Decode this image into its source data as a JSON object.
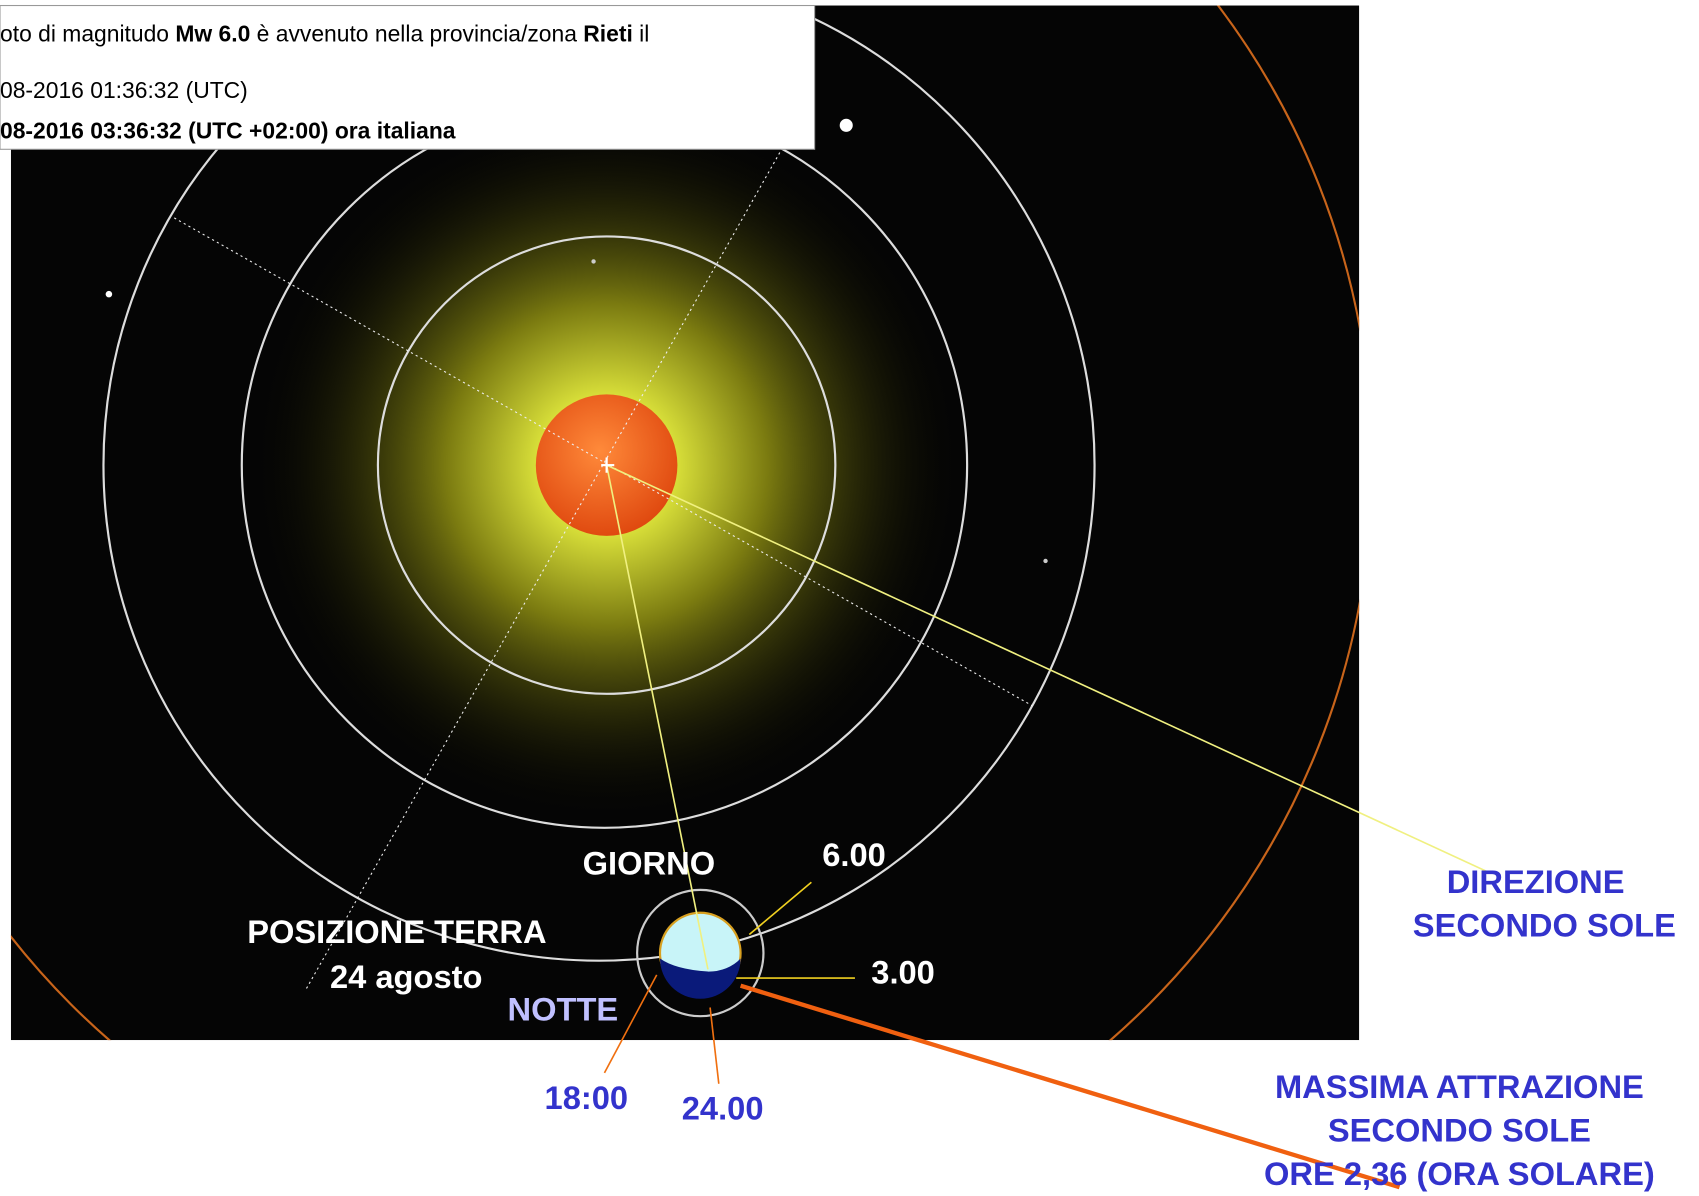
{
  "popup": {
    "line1": [
      "oto di magnitudo ",
      "Mw 6.0",
      " è avvenuto nella provincia/zona ",
      "Rieti",
      " il"
    ],
    "line2": "08-2016 01:36:32 (UTC)",
    "line3": "08-2016 03:36:32 (UTC +02:00) ora italiana"
  },
  "labels": {
    "day": "GIORNO",
    "six": "6.00",
    "position": [
      "POSIZIONE TERRA",
      "24 agosto"
    ],
    "night": "NOTTE",
    "three": "3.00",
    "eighteen": "18:00",
    "twentyfour": "24.00",
    "direction": [
      "DIREZIONE",
      "SECONDO SOLE"
    ],
    "max": [
      "MASSIMA ATTRAZIONE",
      "SECONDO SOLE",
      "ORE 2,36 (ORA SOLARE)"
    ]
  }
}
